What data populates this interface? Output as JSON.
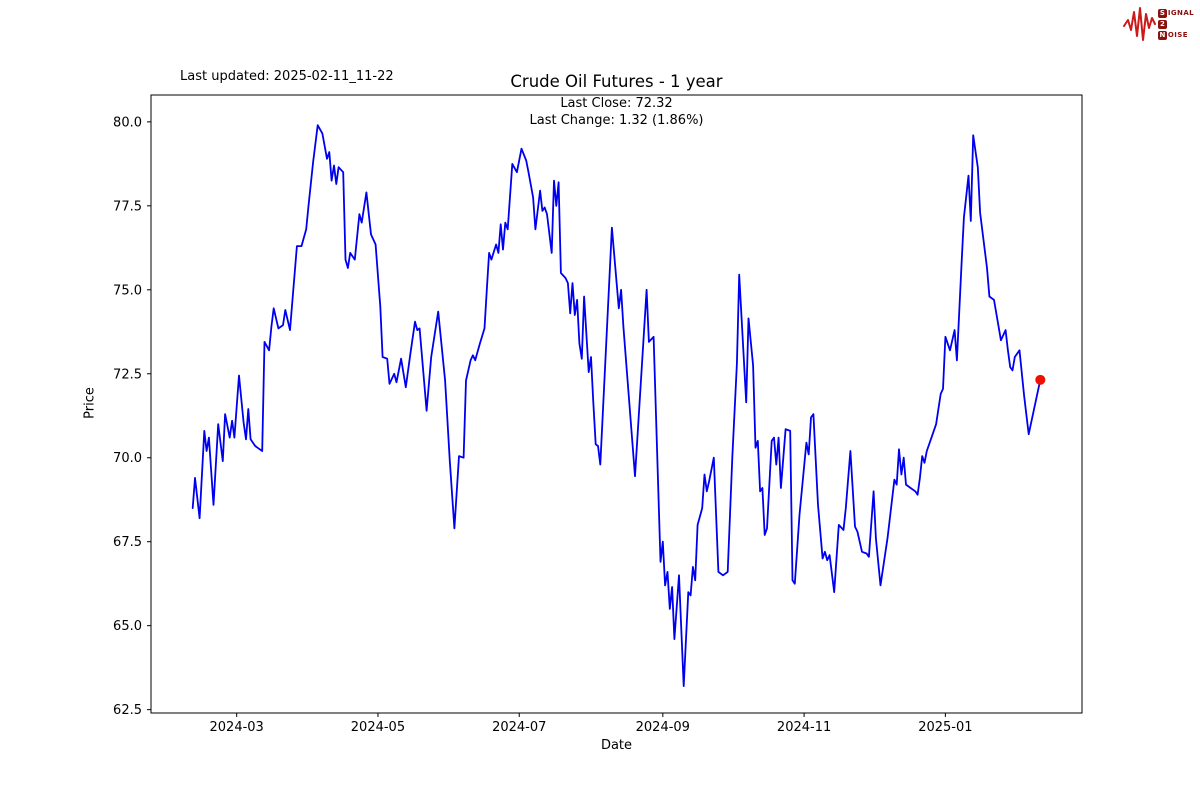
{
  "figure": {
    "last_updated": "Last updated: 2025-02-11_11-22",
    "title": "Crude Oil Futures - 1 year",
    "annotation_line1": "Last Close: 72.32",
    "annotation_line2": "Last Change: 1.32 (1.86%)"
  },
  "logo": {
    "row1_initial": "S",
    "row1_rest": "IGNAL",
    "row2_initial": "2",
    "row2_rest": "",
    "row3_initial": "N",
    "row3_rest": "OISE",
    "color": "#8c1210",
    "waveform_color": "#cc1a1a"
  },
  "chart_data": {
    "type": "line",
    "title": "Crude Oil Futures - 1 year",
    "xlabel": "Date",
    "ylabel": "Price",
    "line_color": "#0000f0",
    "last_point_color": "#f01000",
    "last_close": 72.32,
    "last_change": "1.32 (1.86%)",
    "ylim": [
      62.4,
      80.8
    ],
    "x_domain": [
      "2024-01-24",
      "2025-03-01"
    ],
    "grid": false,
    "legend": "none",
    "yticks": [
      {
        "value": 62.5,
        "label": "62.5"
      },
      {
        "value": 65.0,
        "label": "65.0"
      },
      {
        "value": 67.5,
        "label": "67.5"
      },
      {
        "value": 70.0,
        "label": "70.0"
      },
      {
        "value": 72.5,
        "label": "72.5"
      },
      {
        "value": 75.0,
        "label": "75.0"
      },
      {
        "value": 77.5,
        "label": "77.5"
      },
      {
        "value": 80.0,
        "label": "80.0"
      }
    ],
    "xticks": [
      {
        "date": "2024-03-01",
        "label": "2024-03"
      },
      {
        "date": "2024-05-01",
        "label": "2024-05"
      },
      {
        "date": "2024-07-01",
        "label": "2024-07"
      },
      {
        "date": "2024-09-01",
        "label": "2024-09"
      },
      {
        "date": "2024-11-01",
        "label": "2024-11"
      },
      {
        "date": "2025-01-01",
        "label": "2025-01"
      }
    ],
    "series": [
      {
        "name": "Crude Oil Futures",
        "points": [
          [
            "2024-02-11",
            68.5
          ],
          [
            "2024-02-12",
            69.4
          ],
          [
            "2024-02-14",
            68.2
          ],
          [
            "2024-02-16",
            70.8
          ],
          [
            "2024-02-17",
            70.2
          ],
          [
            "2024-02-18",
            70.6
          ],
          [
            "2024-02-20",
            68.6
          ],
          [
            "2024-02-22",
            71.0
          ],
          [
            "2024-02-24",
            69.9
          ],
          [
            "2024-02-25",
            71.3
          ],
          [
            "2024-02-27",
            70.6
          ],
          [
            "2024-02-28",
            71.1
          ],
          [
            "2024-02-29",
            70.6
          ],
          [
            "2024-03-02",
            72.45
          ],
          [
            "2024-03-04",
            71.05
          ],
          [
            "2024-03-05",
            70.55
          ],
          [
            "2024-03-06",
            71.45
          ],
          [
            "2024-03-07",
            70.55
          ],
          [
            "2024-03-09",
            70.35
          ],
          [
            "2024-03-10",
            70.3
          ],
          [
            "2024-03-12",
            70.2
          ],
          [
            "2024-03-13",
            73.45
          ],
          [
            "2024-03-15",
            73.2
          ],
          [
            "2024-03-16",
            73.9
          ],
          [
            "2024-03-17",
            74.45
          ],
          [
            "2024-03-19",
            73.85
          ],
          [
            "2024-03-21",
            73.95
          ],
          [
            "2024-03-22",
            74.4
          ],
          [
            "2024-03-24",
            73.8
          ],
          [
            "2024-03-27",
            76.3
          ],
          [
            "2024-03-29",
            76.3
          ],
          [
            "2024-03-31",
            76.8
          ],
          [
            "2024-04-01",
            77.5
          ],
          [
            "2024-04-03",
            78.8
          ],
          [
            "2024-04-05",
            79.9
          ],
          [
            "2024-04-07",
            79.65
          ],
          [
            "2024-04-09",
            78.9
          ],
          [
            "2024-04-10",
            79.1
          ],
          [
            "2024-04-11",
            78.25
          ],
          [
            "2024-04-12",
            78.7
          ],
          [
            "2024-04-13",
            78.15
          ],
          [
            "2024-04-14",
            78.65
          ],
          [
            "2024-04-16",
            78.5
          ],
          [
            "2024-04-17",
            75.9
          ],
          [
            "2024-04-18",
            75.65
          ],
          [
            "2024-04-19",
            76.1
          ],
          [
            "2024-04-21",
            75.9
          ],
          [
            "2024-04-23",
            77.25
          ],
          [
            "2024-04-24",
            77.0
          ],
          [
            "2024-04-26",
            77.9
          ],
          [
            "2024-04-28",
            76.65
          ],
          [
            "2024-04-30",
            76.35
          ],
          [
            "2024-05-01",
            75.4
          ],
          [
            "2024-05-02",
            74.5
          ],
          [
            "2024-05-03",
            73.0
          ],
          [
            "2024-05-05",
            72.95
          ],
          [
            "2024-05-06",
            72.2
          ],
          [
            "2024-05-08",
            72.5
          ],
          [
            "2024-05-09",
            72.25
          ],
          [
            "2024-05-11",
            72.95
          ],
          [
            "2024-05-13",
            72.1
          ],
          [
            "2024-05-15",
            73.1
          ],
          [
            "2024-05-17",
            74.05
          ],
          [
            "2024-05-18",
            73.8
          ],
          [
            "2024-05-19",
            73.85
          ],
          [
            "2024-05-22",
            71.4
          ],
          [
            "2024-05-24",
            73.0
          ],
          [
            "2024-05-27",
            74.35
          ],
          [
            "2024-05-30",
            72.3
          ],
          [
            "2024-06-01",
            69.9
          ],
          [
            "2024-06-03",
            67.9
          ],
          [
            "2024-06-05",
            70.05
          ],
          [
            "2024-06-07",
            70.0
          ],
          [
            "2024-06-08",
            72.3
          ],
          [
            "2024-06-10",
            72.9
          ],
          [
            "2024-06-11",
            73.05
          ],
          [
            "2024-06-12",
            72.9
          ],
          [
            "2024-06-14",
            73.4
          ],
          [
            "2024-06-16",
            73.85
          ],
          [
            "2024-06-17",
            75.0
          ],
          [
            "2024-06-18",
            76.1
          ],
          [
            "2024-06-19",
            75.9
          ],
          [
            "2024-06-21",
            76.35
          ],
          [
            "2024-06-22",
            76.1
          ],
          [
            "2024-06-23",
            76.95
          ],
          [
            "2024-06-24",
            76.2
          ],
          [
            "2024-06-25",
            77.0
          ],
          [
            "2024-06-26",
            76.8
          ],
          [
            "2024-06-28",
            78.75
          ],
          [
            "2024-06-30",
            78.5
          ],
          [
            "2024-07-02",
            79.2
          ],
          [
            "2024-07-04",
            78.85
          ],
          [
            "2024-07-05",
            78.5
          ],
          [
            "2024-07-07",
            77.75
          ],
          [
            "2024-07-08",
            76.8
          ],
          [
            "2024-07-10",
            77.95
          ],
          [
            "2024-07-11",
            77.35
          ],
          [
            "2024-07-12",
            77.45
          ],
          [
            "2024-07-13",
            77.25
          ],
          [
            "2024-07-15",
            76.1
          ],
          [
            "2024-07-16",
            78.25
          ],
          [
            "2024-07-17",
            77.5
          ],
          [
            "2024-07-18",
            78.2
          ],
          [
            "2024-07-19",
            75.5
          ],
          [
            "2024-07-21",
            75.35
          ],
          [
            "2024-07-22",
            75.2
          ],
          [
            "2024-07-23",
            74.3
          ],
          [
            "2024-07-24",
            75.2
          ],
          [
            "2024-07-25",
            74.25
          ],
          [
            "2024-07-26",
            74.7
          ],
          [
            "2024-07-27",
            73.4
          ],
          [
            "2024-07-28",
            72.95
          ],
          [
            "2024-07-29",
            74.8
          ],
          [
            "2024-07-31",
            72.55
          ],
          [
            "2024-08-01",
            73.0
          ],
          [
            "2024-08-02",
            71.65
          ],
          [
            "2024-08-03",
            70.4
          ],
          [
            "2024-08-04",
            70.35
          ],
          [
            "2024-08-05",
            69.8
          ],
          [
            "2024-08-10",
            76.85
          ],
          [
            "2024-08-13",
            74.45
          ],
          [
            "2024-08-14",
            75.0
          ],
          [
            "2024-08-15",
            73.9
          ],
          [
            "2024-08-20",
            69.45
          ],
          [
            "2024-08-25",
            75.0
          ],
          [
            "2024-08-26",
            73.45
          ],
          [
            "2024-08-28",
            73.6
          ],
          [
            "2024-08-31",
            66.9
          ],
          [
            "2024-09-01",
            67.5
          ],
          [
            "2024-09-02",
            66.2
          ],
          [
            "2024-09-03",
            66.6
          ],
          [
            "2024-09-04",
            65.5
          ],
          [
            "2024-09-05",
            66.15
          ],
          [
            "2024-09-06",
            64.6
          ],
          [
            "2024-09-08",
            66.5
          ],
          [
            "2024-09-10",
            63.2
          ],
          [
            "2024-09-12",
            66.0
          ],
          [
            "2024-09-13",
            65.9
          ],
          [
            "2024-09-14",
            66.75
          ],
          [
            "2024-09-15",
            66.35
          ],
          [
            "2024-09-16",
            68.0
          ],
          [
            "2024-09-18",
            68.5
          ],
          [
            "2024-09-19",
            69.5
          ],
          [
            "2024-09-20",
            69.0
          ],
          [
            "2024-09-21",
            69.3
          ],
          [
            "2024-09-23",
            70.0
          ],
          [
            "2024-09-25",
            66.6
          ],
          [
            "2024-09-27",
            66.5
          ],
          [
            "2024-09-29",
            66.6
          ],
          [
            "2024-09-30",
            68.3
          ],
          [
            "2024-10-01",
            70.0
          ],
          [
            "2024-10-03",
            72.8
          ],
          [
            "2024-10-04",
            75.45
          ],
          [
            "2024-10-07",
            71.65
          ],
          [
            "2024-10-08",
            74.15
          ],
          [
            "2024-10-10",
            72.75
          ],
          [
            "2024-10-11",
            70.3
          ],
          [
            "2024-10-12",
            70.5
          ],
          [
            "2024-10-13",
            69.0
          ],
          [
            "2024-10-14",
            69.1
          ],
          [
            "2024-10-15",
            67.7
          ],
          [
            "2024-10-16",
            67.9
          ],
          [
            "2024-10-18",
            70.5
          ],
          [
            "2024-10-19",
            70.6
          ],
          [
            "2024-10-20",
            69.8
          ],
          [
            "2024-10-21",
            70.6
          ],
          [
            "2024-10-22",
            69.1
          ],
          [
            "2024-10-24",
            70.85
          ],
          [
            "2024-10-26",
            70.8
          ],
          [
            "2024-10-27",
            66.35
          ],
          [
            "2024-10-28",
            66.25
          ],
          [
            "2024-10-30",
            68.3
          ],
          [
            "2024-11-02",
            70.45
          ],
          [
            "2024-11-03",
            70.1
          ],
          [
            "2024-11-04",
            71.2
          ],
          [
            "2024-11-05",
            71.3
          ],
          [
            "2024-11-07",
            68.6
          ],
          [
            "2024-11-09",
            67.0
          ],
          [
            "2024-11-10",
            67.2
          ],
          [
            "2024-11-11",
            66.95
          ],
          [
            "2024-11-12",
            67.1
          ],
          [
            "2024-11-14",
            66.0
          ],
          [
            "2024-11-16",
            68.0
          ],
          [
            "2024-11-18",
            67.85
          ],
          [
            "2024-11-19",
            68.5
          ],
          [
            "2024-11-21",
            70.2
          ],
          [
            "2024-11-23",
            67.95
          ],
          [
            "2024-11-24",
            67.8
          ],
          [
            "2024-11-26",
            67.2
          ],
          [
            "2024-11-28",
            67.15
          ],
          [
            "2024-11-29",
            67.05
          ],
          [
            "2024-12-01",
            69.0
          ],
          [
            "2024-12-02",
            67.6
          ],
          [
            "2024-12-04",
            66.2
          ],
          [
            "2024-12-07",
            67.6
          ],
          [
            "2024-12-10",
            69.35
          ],
          [
            "2024-12-11",
            69.2
          ],
          [
            "2024-12-12",
            70.25
          ],
          [
            "2024-12-13",
            69.5
          ],
          [
            "2024-12-14",
            70.0
          ],
          [
            "2024-12-15",
            69.2
          ],
          [
            "2024-12-17",
            69.1
          ],
          [
            "2024-12-19",
            69.0
          ],
          [
            "2024-12-20",
            68.9
          ],
          [
            "2024-12-21",
            69.4
          ],
          [
            "2024-12-22",
            70.05
          ],
          [
            "2024-12-23",
            69.85
          ],
          [
            "2024-12-24",
            70.2
          ],
          [
            "2024-12-26",
            70.6
          ],
          [
            "2024-12-28",
            71.0
          ],
          [
            "2024-12-30",
            71.9
          ],
          [
            "2024-12-31",
            72.05
          ],
          [
            "2025-01-01",
            73.6
          ],
          [
            "2025-01-03",
            73.2
          ],
          [
            "2025-01-05",
            73.8
          ],
          [
            "2025-01-06",
            72.9
          ],
          [
            "2025-01-08",
            75.8
          ],
          [
            "2025-01-09",
            77.15
          ],
          [
            "2025-01-11",
            78.4
          ],
          [
            "2025-01-12",
            77.05
          ],
          [
            "2025-01-13",
            79.6
          ],
          [
            "2025-01-15",
            78.65
          ],
          [
            "2025-01-16",
            77.3
          ],
          [
            "2025-01-19",
            75.65
          ],
          [
            "2025-01-20",
            74.8
          ],
          [
            "2025-01-22",
            74.7
          ],
          [
            "2025-01-24",
            73.9
          ],
          [
            "2025-01-25",
            73.5
          ],
          [
            "2025-01-27",
            73.8
          ],
          [
            "2025-01-28",
            73.2
          ],
          [
            "2025-01-29",
            72.7
          ],
          [
            "2025-01-30",
            72.6
          ],
          [
            "2025-01-31",
            73.0
          ],
          [
            "2025-02-02",
            73.2
          ],
          [
            "2025-02-04",
            71.85
          ],
          [
            "2025-02-06",
            70.7
          ],
          [
            "2025-02-11",
            72.32
          ]
        ]
      }
    ]
  }
}
